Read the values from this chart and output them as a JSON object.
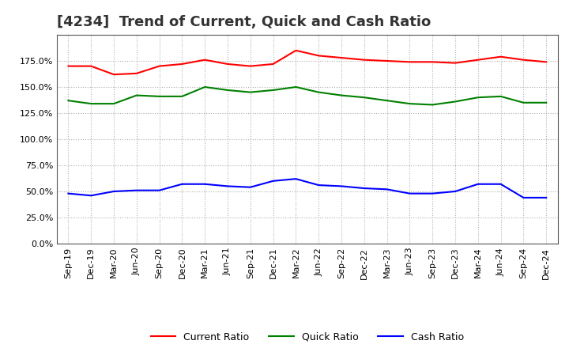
{
  "title": "[4234]  Trend of Current, Quick and Cash Ratio",
  "x_labels": [
    "Sep-19",
    "Dec-19",
    "Mar-20",
    "Jun-20",
    "Sep-20",
    "Dec-20",
    "Mar-21",
    "Jun-21",
    "Sep-21",
    "Dec-21",
    "Mar-22",
    "Jun-22",
    "Sep-22",
    "Dec-22",
    "Mar-23",
    "Jun-23",
    "Sep-23",
    "Dec-23",
    "Mar-24",
    "Jun-24",
    "Sep-24",
    "Dec-24"
  ],
  "current_ratio": [
    1.7,
    1.7,
    1.62,
    1.63,
    1.7,
    1.72,
    1.76,
    1.72,
    1.7,
    1.72,
    1.85,
    1.8,
    1.78,
    1.76,
    1.75,
    1.74,
    1.74,
    1.73,
    1.76,
    1.79,
    1.76,
    1.74
  ],
  "quick_ratio": [
    1.37,
    1.34,
    1.34,
    1.42,
    1.41,
    1.41,
    1.5,
    1.47,
    1.45,
    1.47,
    1.5,
    1.45,
    1.42,
    1.4,
    1.37,
    1.34,
    1.33,
    1.36,
    1.4,
    1.41,
    1.35,
    1.35
  ],
  "cash_ratio": [
    0.48,
    0.46,
    0.5,
    0.51,
    0.51,
    0.57,
    0.57,
    0.55,
    0.54,
    0.6,
    0.62,
    0.56,
    0.55,
    0.53,
    0.52,
    0.48,
    0.48,
    0.5,
    0.57,
    0.57,
    0.44,
    0.44
  ],
  "current_color": "#ff0000",
  "quick_color": "#008000",
  "cash_color": "#0000ff",
  "ylim": [
    0.0,
    2.0
  ],
  "yticks": [
    0.0,
    0.25,
    0.5,
    0.75,
    1.0,
    1.25,
    1.5,
    1.75
  ],
  "background_color": "#ffffff",
  "grid_color": "#b0b0b0",
  "title_fontsize": 13,
  "tick_fontsize": 8,
  "legend_fontsize": 9,
  "linewidth": 1.5,
  "legend_labels": [
    "Current Ratio",
    "Quick Ratio",
    "Cash Ratio"
  ]
}
